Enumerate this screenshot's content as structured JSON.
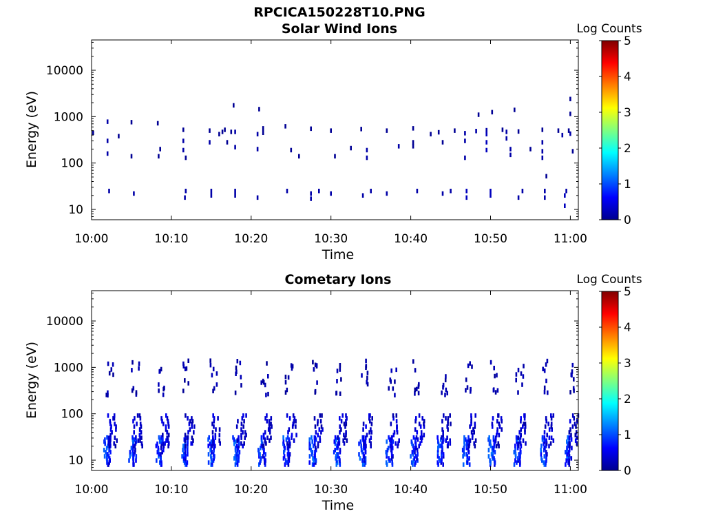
{
  "figure": {
    "title": "RPCICA150228T10.PNG"
  },
  "colorbar": {
    "label": "Log Counts",
    "range": [
      0,
      5
    ],
    "ticks": [
      "0",
      "1",
      "2",
      "3",
      "4",
      "5"
    ],
    "colormap": "jet"
  },
  "chart_data": [
    {
      "type": "heatmap",
      "title": "Solar Wind Ions",
      "xlabel": "Time",
      "ylabel": "Energy (eV)",
      "xlim": [
        "10:00",
        "11:01"
      ],
      "ylim": [
        6,
        45000
      ],
      "yscale": "log",
      "xticks": [
        "10:00",
        "10:10",
        "10:20",
        "10:30",
        "10:40",
        "10:50",
        "11:00"
      ],
      "yticks": [
        "10",
        "100",
        "1000",
        "10000"
      ],
      "grid": false,
      "cells": [
        [
          "10:00.2",
          450,
          0.1
        ],
        [
          "10:02.0",
          780,
          0.2
        ],
        [
          "10:02.0",
          300,
          0.2
        ],
        [
          "10:02.0",
          160,
          0.2
        ],
        [
          "10:02.2",
          25,
          0.2
        ],
        [
          "10:03.4",
          380,
          0.1
        ],
        [
          "10:05.0",
          760,
          0.1
        ],
        [
          "10:05.0",
          140,
          0.1
        ],
        [
          "10:05.3",
          22,
          0.2
        ],
        [
          "10:08.3",
          720,
          0.1
        ],
        [
          "10:08.6",
          200,
          0.1
        ],
        [
          "10:08.4",
          140,
          0.1
        ],
        [
          "10:11.5",
          520,
          0.1
        ],
        [
          "10:11.5",
          300,
          0.2
        ],
        [
          "10:11.5",
          190,
          0.2
        ],
        [
          "10:11.8",
          130,
          0.1
        ],
        [
          "10:11.7",
          18,
          0.2
        ],
        [
          "10:11.8",
          25,
          0.2
        ],
        [
          "10:14.8",
          500,
          0.1
        ],
        [
          "10:14.8",
          280,
          0.2
        ],
        [
          "10:15.0",
          20,
          0.2
        ],
        [
          "10:15.0",
          25,
          0.2
        ],
        [
          "10:16.0",
          420,
          0.1
        ],
        [
          "10:16.4",
          470,
          0.1
        ],
        [
          "10:16.7",
          520,
          0.1
        ],
        [
          "10:17.0",
          280,
          0.1
        ],
        [
          "10:17.5",
          470,
          0.1
        ],
        [
          "10:17.8",
          1750,
          0.1
        ],
        [
          "10:18.0",
          470,
          0.2
        ],
        [
          "10:18.0",
          220,
          0.2
        ],
        [
          "10:18.0",
          25,
          0.2
        ],
        [
          "10:18.0",
          20,
          0.2
        ],
        [
          "10:20.8",
          420,
          0.2
        ],
        [
          "10:20.8",
          200,
          0.2
        ],
        [
          "10:21.0",
          1450,
          0.1
        ],
        [
          "10:21.5",
          560,
          0.1
        ],
        [
          "10:21.5",
          450,
          0.1
        ],
        [
          "10:20.8",
          18,
          0.2
        ],
        [
          "10:24.3",
          620,
          0.1
        ],
        [
          "10:24.5",
          25,
          0.2
        ],
        [
          "10:25.0",
          190,
          0.1
        ],
        [
          "10:26.0",
          140,
          0.1
        ],
        [
          "10:27.5",
          550,
          0.1
        ],
        [
          "10:27.5",
          22,
          0.2
        ],
        [
          "10:27.5",
          17,
          0.2
        ],
        [
          "10:28.5",
          25,
          0.2
        ],
        [
          "10:30.0",
          500,
          0.1
        ],
        [
          "10:30.0",
          22,
          0.2
        ],
        [
          "10:30.5",
          140,
          0.1
        ],
        [
          "10:32.5",
          210,
          0.1
        ],
        [
          "10:33.8",
          540,
          0.1
        ],
        [
          "10:34.0",
          20,
          0.2
        ],
        [
          "10:34.5",
          190,
          0.2
        ],
        [
          "10:34.5",
          130,
          0.2
        ],
        [
          "10:35.0",
          25,
          0.2
        ],
        [
          "10:37.0",
          500,
          0.1
        ],
        [
          "10:37.0",
          22,
          0.2
        ],
        [
          "10:38.5",
          230,
          0.2
        ],
        [
          "10:40.3",
          560,
          0.1
        ],
        [
          "10:40.3",
          280,
          0.1
        ],
        [
          "10:40.3",
          230,
          0.1
        ],
        [
          "10:40.8",
          25,
          0.2
        ],
        [
          "10:42.5",
          420,
          0.1
        ],
        [
          "10:43.5",
          460,
          0.1
        ],
        [
          "10:44.0",
          280,
          0.1
        ],
        [
          "10:44.0",
          22,
          0.2
        ],
        [
          "10:45.0",
          25,
          0.2
        ],
        [
          "10:45.5",
          500,
          0.1
        ],
        [
          "10:46.8",
          440,
          0.2
        ],
        [
          "10:46.8",
          300,
          0.2
        ],
        [
          "10:46.8",
          130,
          0.2
        ],
        [
          "10:47.0",
          25,
          0.3
        ],
        [
          "10:47.0",
          18,
          0.3
        ],
        [
          "10:48.2",
          490,
          0.2
        ],
        [
          "10:48.5",
          1100,
          0.1
        ],
        [
          "10:49.5",
          510,
          0.2
        ],
        [
          "10:49.5",
          420,
          0.3
        ],
        [
          "10:49.5",
          280,
          0.3
        ],
        [
          "10:49.5",
          190,
          0.3
        ],
        [
          "10:50.0",
          20,
          0.3
        ],
        [
          "10:50.0",
          25,
          0.3
        ],
        [
          "10:50.2",
          1250,
          0.1
        ],
        [
          "10:51.5",
          520,
          0.1
        ],
        [
          "10:52.0",
          470,
          0.2
        ],
        [
          "10:52.0",
          340,
          0.2
        ],
        [
          "10:52.5",
          200,
          0.2
        ],
        [
          "10:52.5",
          150,
          0.2
        ],
        [
          "10:53.0",
          1400,
          0.1
        ],
        [
          "10:53.5",
          480,
          0.1
        ],
        [
          "10:53.5",
          18,
          0.2
        ],
        [
          "10:54.0",
          25,
          0.2
        ],
        [
          "10:55.0",
          200,
          0.1
        ],
        [
          "10:56.5",
          520,
          0.1
        ],
        [
          "10:56.5",
          280,
          0.2
        ],
        [
          "10:56.5",
          180,
          0.2
        ],
        [
          "10:56.5",
          130,
          0.2
        ],
        [
          "10:56.8",
          25,
          0.2
        ],
        [
          "10:56.8",
          18,
          0.2
        ],
        [
          "10:57.0",
          52,
          0.1
        ],
        [
          "10:58.5",
          500,
          0.1
        ],
        [
          "10:59.0",
          400,
          0.2
        ],
        [
          "10:59.3",
          20,
          0.3
        ],
        [
          "10:59.3",
          12,
          0.3
        ],
        [
          "10:59.5",
          25,
          0.2
        ],
        [
          "10:59.8",
          500,
          0.1
        ],
        [
          "11:00.0",
          2400,
          0.1
        ],
        [
          "11:00.0",
          1150,
          0.1
        ],
        [
          "11:00.0",
          430,
          0.2
        ],
        [
          "11:00.3",
          180,
          0.1
        ]
      ]
    },
    {
      "type": "heatmap",
      "title": "Cometary Ions",
      "xlabel": "Time",
      "ylabel": "Energy (eV)",
      "xlim": [
        "10:00",
        "11:01"
      ],
      "ylim": [
        6,
        45000
      ],
      "yscale": "log",
      "xticks": [
        "10:00",
        "10:10",
        "10:20",
        "10:30",
        "10:40",
        "10:50",
        "11:00"
      ],
      "yticks": [
        "10",
        "100",
        "1000",
        "10000"
      ],
      "grid": false,
      "pattern": {
        "burst_times": [
          "10:01.8",
          "10:05.0",
          "10:08.4",
          "10:11.5",
          "10:14.8",
          "10:18.0",
          "10:21.2",
          "10:24.3",
          "10:27.6",
          "10:30.6",
          "10:33.8",
          "10:37.2",
          "10:40.3",
          "10:43.6",
          "10:46.8",
          "10:50.0",
          "10:53.2",
          "10:56.5",
          "10:59.6"
        ],
        "low_energy_level": [
          0.6,
          1.2
        ],
        "mid_energy_level": [
          0.2,
          0.6
        ],
        "high_energy_level": [
          0.1,
          0.3
        ]
      }
    }
  ]
}
